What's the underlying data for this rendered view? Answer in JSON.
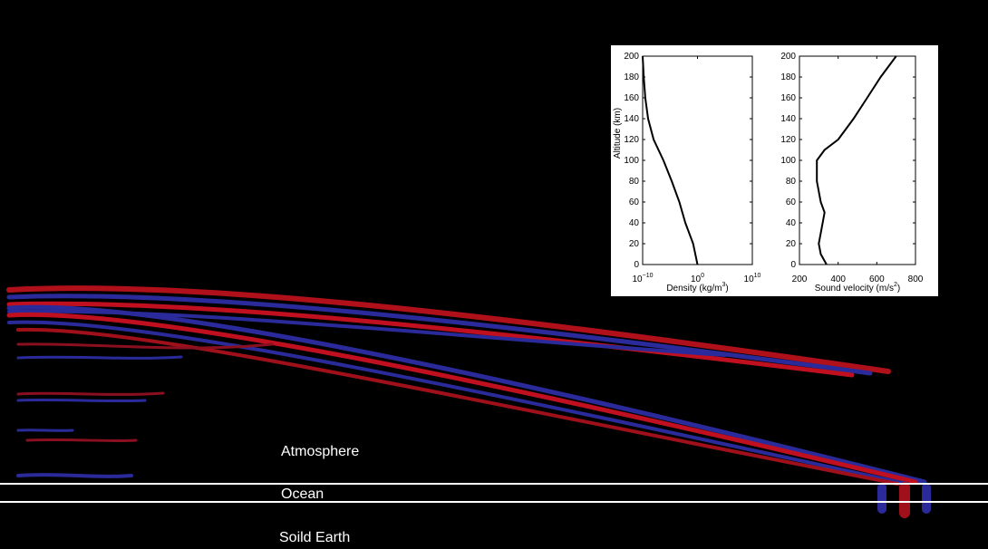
{
  "scene": {
    "layers": [
      "Atmosphere",
      "Ocean",
      "Soild Earth"
    ]
  },
  "chart_data": [
    {
      "type": "line",
      "xlabel": "Density (kg/m^{3})",
      "ylabel": "Altitude (km)",
      "xscale": "log",
      "xlim": [
        1e-10,
        10000000000.0
      ],
      "xticks": [
        {
          "value": 1e-10,
          "label": "10^{−10}"
        },
        {
          "value": 1,
          "label": "10^{0}"
        },
        {
          "value": 10000000000.0,
          "label": "10^{10}"
        }
      ],
      "ylim": [
        0,
        200
      ],
      "yticks": [
        0,
        20,
        40,
        60,
        80,
        100,
        120,
        140,
        160,
        180,
        200
      ],
      "series": [
        {
          "color": "#000000",
          "x": [
            1,
            0.16,
            0.006,
            0.0005,
            2e-05,
            6e-07,
            1e-08,
            1e-09,
            3e-10,
            1.6e-10,
            1e-10
          ],
          "values": [
            0,
            20,
            40,
            60,
            80,
            100,
            120,
            140,
            160,
            180,
            200
          ]
        }
      ]
    },
    {
      "type": "line",
      "xlabel": "Sound velocity (m/s^{2})",
      "xlim": [
        200,
        800
      ],
      "xticks": [
        200,
        400,
        600,
        800
      ],
      "ylim": [
        0,
        200
      ],
      "yticks": [
        0,
        20,
        40,
        60,
        80,
        100,
        120,
        140,
        160,
        180,
        200
      ],
      "series": [
        {
          "color": "#000000",
          "x": [
            340,
            310,
            300,
            320,
            330,
            310,
            290,
            290,
            330,
            400,
            480,
            550,
            620,
            700
          ],
          "values": [
            0,
            10,
            20,
            40,
            50,
            60,
            80,
            100,
            110,
            120,
            140,
            160,
            180,
            200
          ]
        }
      ]
    }
  ]
}
